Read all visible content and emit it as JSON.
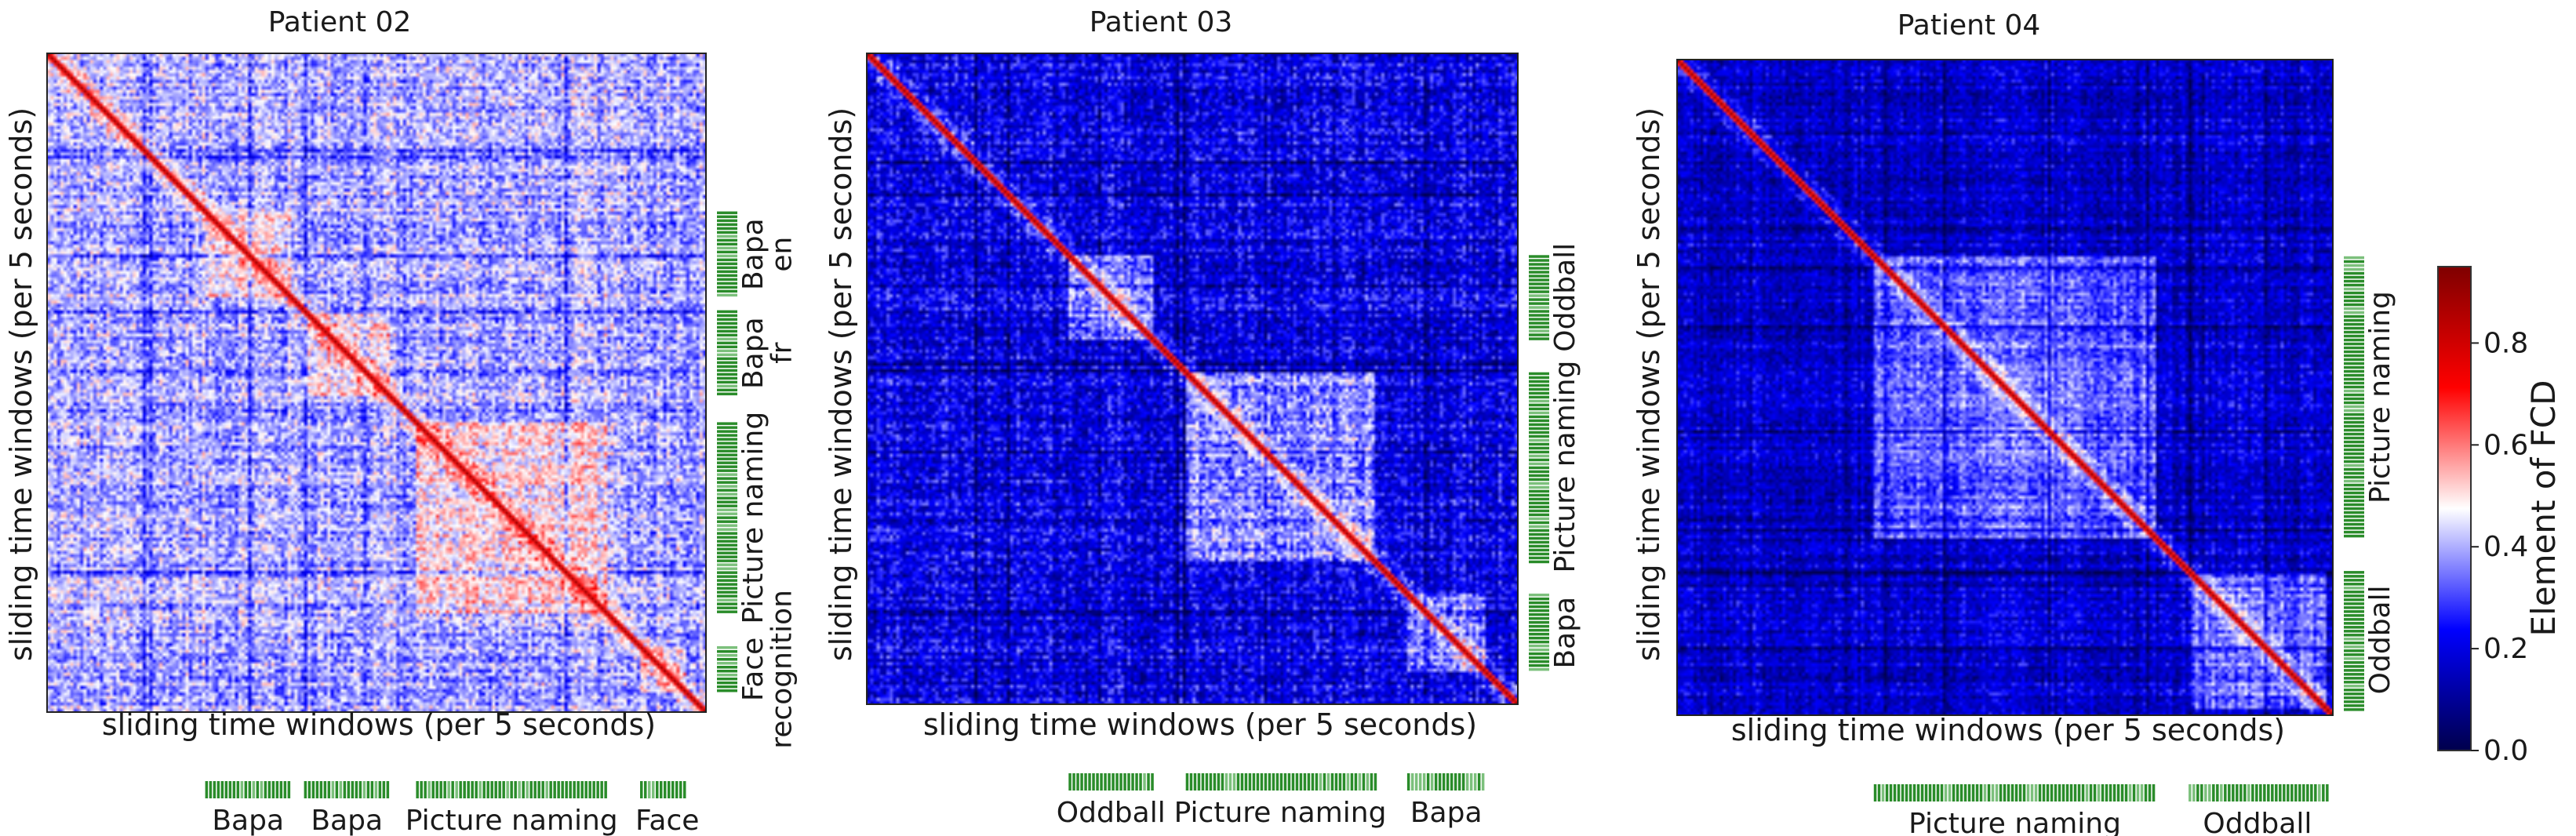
{
  "chart_data": [
    {
      "type": "heatmap",
      "title": "Patient 02",
      "xlabel": "sliding time windows (per 5 seconds)",
      "ylabel": "sliding time windows (per 5 seconds)",
      "n_windows": 400,
      "value_range": [
        0.0,
        1.0
      ],
      "tasks": [
        {
          "label": [
            "Bapa",
            "en"
          ],
          "start": 0.24,
          "end": 0.37
        },
        {
          "label": [
            "Bapa",
            "fr"
          ],
          "start": 0.39,
          "end": 0.52
        },
        {
          "label": [
            "Picture naming"
          ],
          "start": 0.56,
          "end": 0.85
        },
        {
          "label": [
            "Face",
            "recognition"
          ],
          "start": 0.9,
          "end": 0.97
        }
      ]
    },
    {
      "type": "heatmap",
      "title": "Patient 03",
      "xlabel": "sliding time windows (per 5 seconds)",
      "ylabel": "sliding time windows (per 5 seconds)",
      "n_windows": 400,
      "value_range": [
        0.0,
        1.0
      ],
      "tasks": [
        {
          "label": [
            "Oddball"
          ],
          "start": 0.31,
          "end": 0.44
        },
        {
          "label": [
            "Picture naming"
          ],
          "start": 0.49,
          "end": 0.78
        },
        {
          "label": [
            "Bapa"
          ],
          "start": 0.83,
          "end": 0.95
        }
      ]
    },
    {
      "type": "heatmap",
      "title": "Patient 04",
      "xlabel": "sliding time windows (per 5 seconds)",
      "ylabel": "sliding time windows (per 5 seconds)",
      "n_windows": 400,
      "value_range": [
        0.0,
        1.0
      ],
      "tasks": [
        {
          "label": [
            "Picture naming"
          ],
          "start": 0.3,
          "end": 0.73
        },
        {
          "label": [
            "Oddball"
          ],
          "start": 0.78,
          "end": 0.99
        }
      ]
    }
  ],
  "colorbar": {
    "label": "Element of FCD",
    "ticks": [
      0.0,
      0.2,
      0.4,
      0.6,
      0.8
    ],
    "tick_labels": [
      "0.0",
      "0.2",
      "0.4",
      "0.6",
      "0.8"
    ],
    "range": [
      0.0,
      0.95
    ],
    "colormap": "seismic"
  }
}
